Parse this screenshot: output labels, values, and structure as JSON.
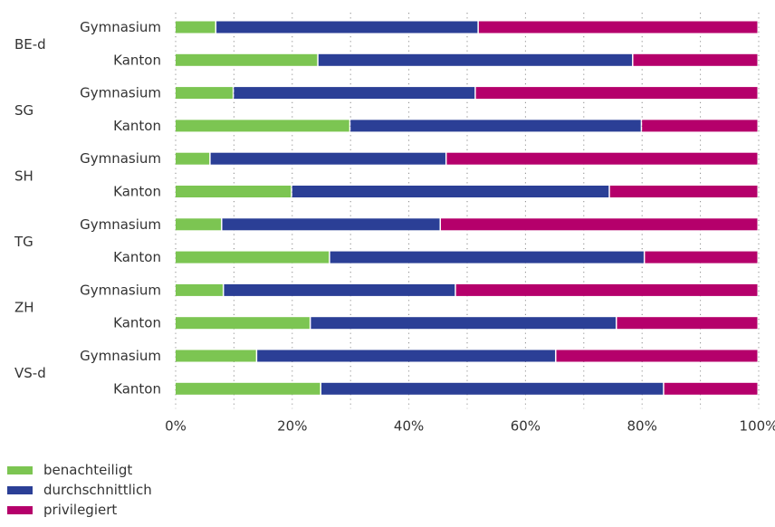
{
  "chart_data": {
    "type": "bar",
    "orientation": "horizontal",
    "stacked": true,
    "normalized": true,
    "groups": [
      "BE-d",
      "SG",
      "SH",
      "TG",
      "ZH",
      "VS-d"
    ],
    "sub_categories": [
      "Gymnasium",
      "Kanton"
    ],
    "series": [
      {
        "name": "benachteiligt",
        "color": "#7cc552",
        "values": [
          7,
          24.5,
          10,
          30,
          6,
          20,
          8,
          26.5,
          8.3,
          23.2,
          14,
          25
        ]
      },
      {
        "name": "durchschnittlich",
        "color": "#2b3f96",
        "values": [
          45,
          54,
          41.5,
          50,
          40.5,
          54.5,
          37.5,
          54,
          39.8,
          52.5,
          51.3,
          58.8
        ]
      },
      {
        "name": "privilegiert",
        "color": "#b5006b",
        "values": [
          48,
          21.5,
          48.5,
          20,
          53.5,
          25.5,
          54.5,
          19.5,
          51.9,
          24.3,
          34.7,
          16.2
        ]
      }
    ],
    "x_ticks": [
      "0%",
      "20%",
      "40%",
      "60%",
      "80%",
      "100%"
    ],
    "xlim": [
      0,
      100
    ],
    "grid": "vertical dotted",
    "legend_position": "bottom-left"
  }
}
